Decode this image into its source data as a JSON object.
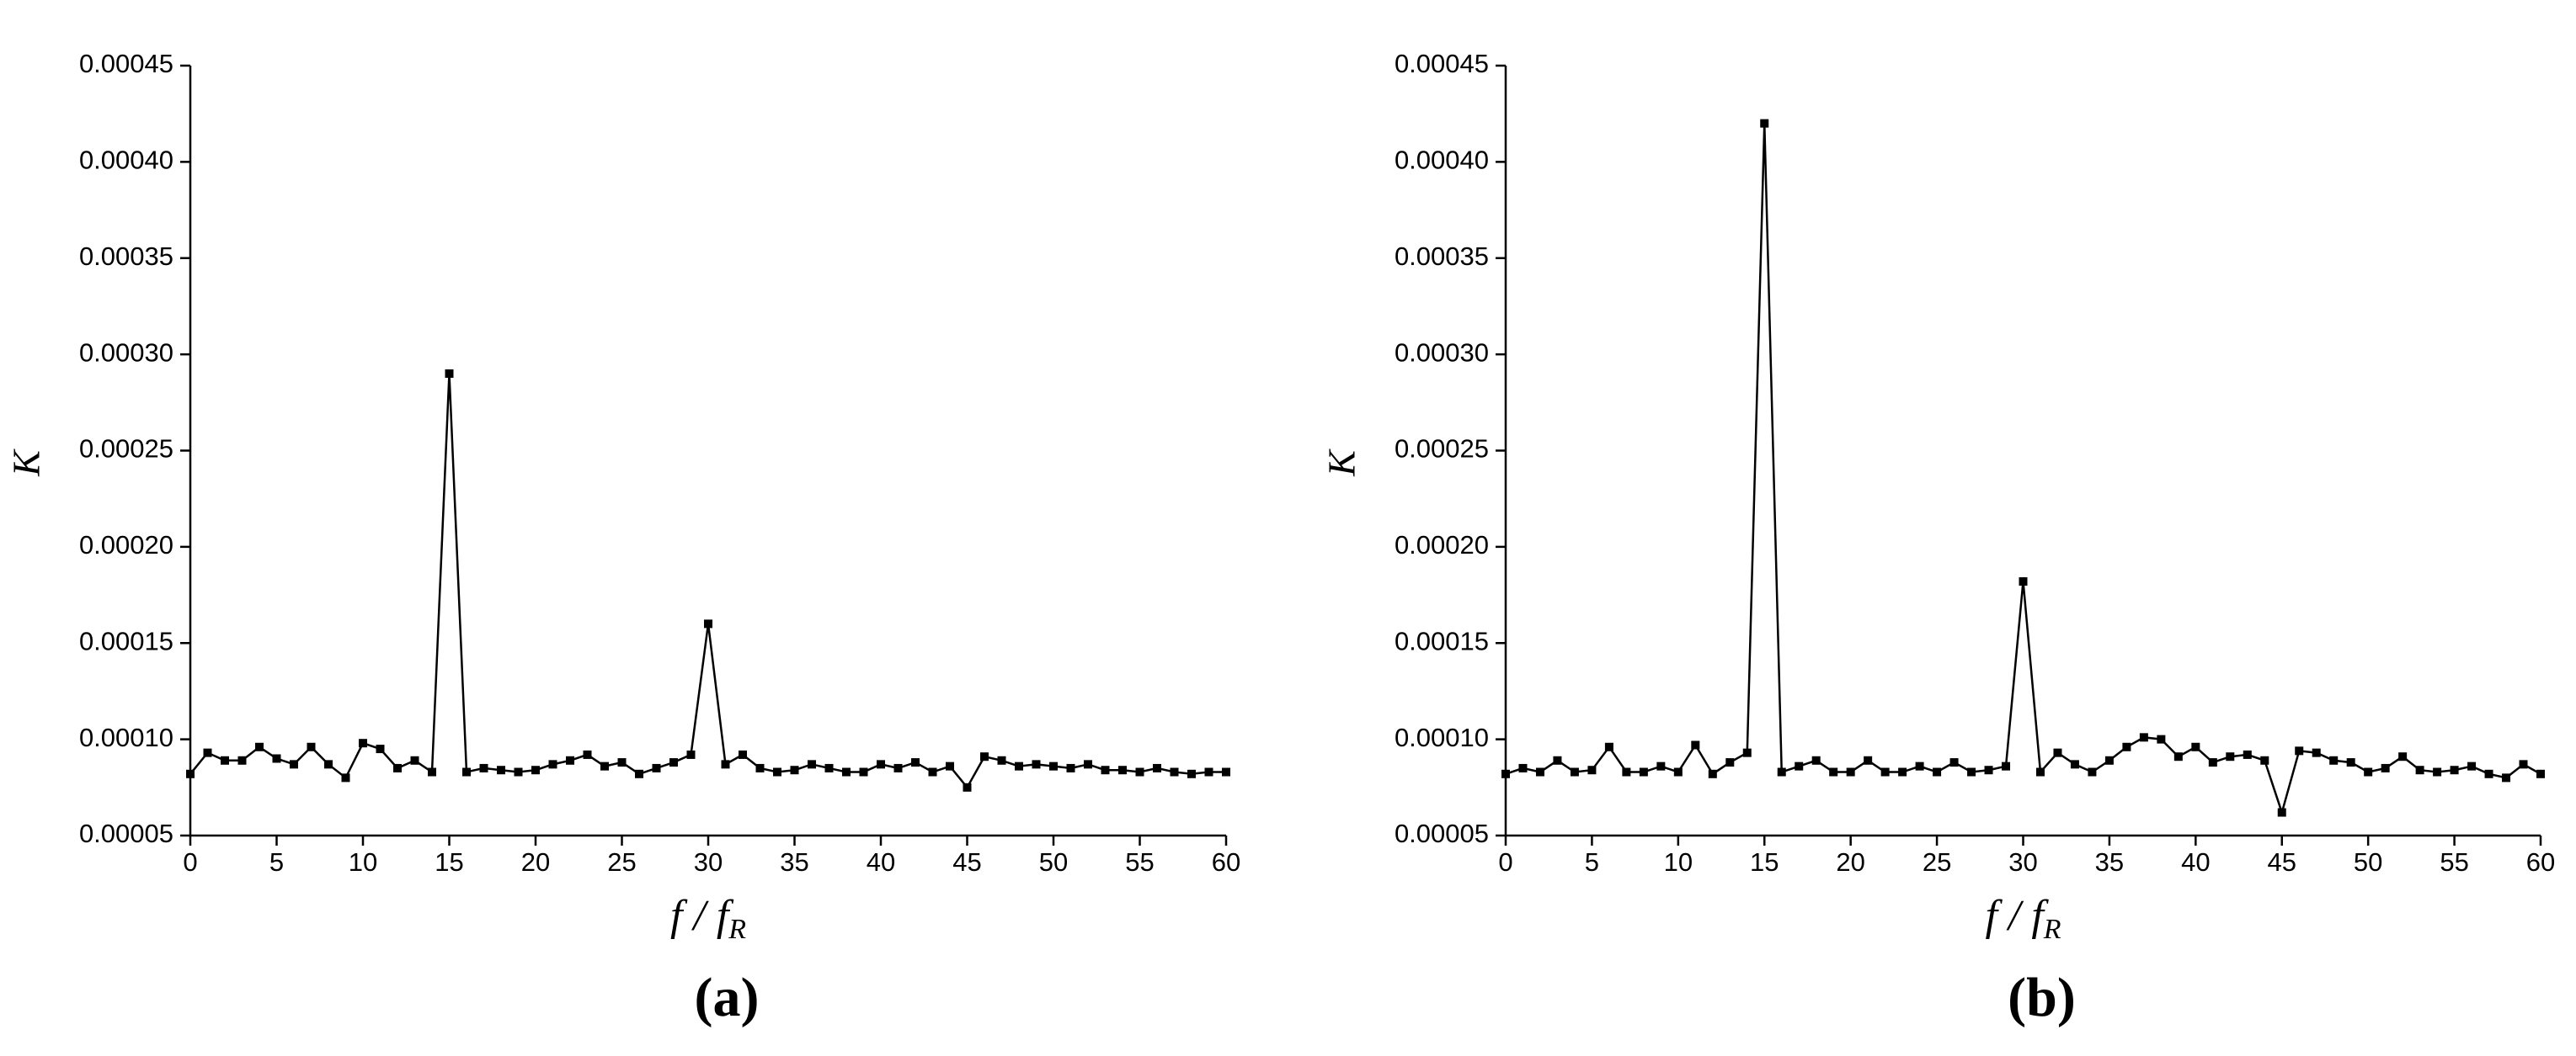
{
  "chart_data": [
    {
      "type": "line",
      "panel_label": "(a)",
      "y_label": "K",
      "x_label": {
        "text": "f / f",
        "subscript": "R"
      },
      "x": [
        0,
        1,
        2,
        3,
        4,
        5,
        6,
        7,
        8,
        9,
        10,
        11,
        12,
        13,
        14,
        15,
        16,
        17,
        18,
        19,
        20,
        21,
        22,
        23,
        24,
        25,
        26,
        27,
        28,
        29,
        30,
        31,
        32,
        33,
        34,
        35,
        36,
        37,
        38,
        39,
        40,
        41,
        42,
        43,
        44,
        45,
        46,
        47,
        48,
        49,
        50,
        51,
        52,
        53,
        54,
        55,
        56,
        57,
        58,
        59,
        60
      ],
      "series": [
        {
          "color": "#000000",
          "values": [
            8.2e-05,
            9.3e-05,
            8.9e-05,
            8.9e-05,
            9.6e-05,
            9e-05,
            8.7e-05,
            9.6e-05,
            8.7e-05,
            8e-05,
            9.8e-05,
            9.5e-05,
            8.5e-05,
            8.9e-05,
            8.3e-05,
            0.00029,
            8.3e-05,
            8.5e-05,
            8.4e-05,
            8.3e-05,
            8.4e-05,
            8.7e-05,
            8.9e-05,
            9.2e-05,
            8.6e-05,
            8.8e-05,
            8.2e-05,
            8.5e-05,
            8.8e-05,
            9.2e-05,
            0.00016,
            8.7e-05,
            9.2e-05,
            8.5e-05,
            8.3e-05,
            8.4e-05,
            8.7e-05,
            8.5e-05,
            8.3e-05,
            8.3e-05,
            8.7e-05,
            8.5e-05,
            8.8e-05,
            8.3e-05,
            8.6e-05,
            7.5e-05,
            9.1e-05,
            8.9e-05,
            8.6e-05,
            8.7e-05,
            8.6e-05,
            8.5e-05,
            8.7e-05,
            8.4e-05,
            8.4e-05,
            8.3e-05,
            8.5e-05,
            8.3e-05,
            8.2e-05,
            8.3e-05,
            8.3e-05
          ]
        }
      ],
      "xlim": [
        0,
        60
      ],
      "xticks": [
        0,
        5,
        10,
        15,
        20,
        25,
        30,
        35,
        40,
        45,
        50,
        55,
        60
      ],
      "ylim": [
        5e-05,
        0.00045
      ],
      "yticks": [
        5e-05,
        {
          "value": 0.0001,
          "label": "0.00010"
        },
        0.00015,
        {
          "value": 0.0002,
          "label": "0.00020"
        },
        0.00025,
        {
          "value": 0.0003,
          "label": "0.00030"
        },
        0.00035,
        {
          "value": 0.0004,
          "label": "0.00040"
        },
        0.00045
      ]
    },
    {
      "type": "line",
      "panel_label": "(b)",
      "y_label": "K",
      "x_label": {
        "text": "f / f",
        "subscript": "R"
      },
      "x": [
        0,
        1,
        2,
        3,
        4,
        5,
        6,
        7,
        8,
        9,
        10,
        11,
        12,
        13,
        14,
        15,
        16,
        17,
        18,
        19,
        20,
        21,
        22,
        23,
        24,
        25,
        26,
        27,
        28,
        29,
        30,
        31,
        32,
        33,
        34,
        35,
        36,
        37,
        38,
        39,
        40,
        41,
        42,
        43,
        44,
        45,
        46,
        47,
        48,
        49,
        50,
        51,
        52,
        53,
        54,
        55,
        56,
        57,
        58,
        59,
        60
      ],
      "series": [
        {
          "color": "#000000",
          "values": [
            8.2e-05,
            8.5e-05,
            8.3e-05,
            8.9e-05,
            8.3e-05,
            8.4e-05,
            9.6e-05,
            8.3e-05,
            8.3e-05,
            8.6e-05,
            8.3e-05,
            9.7e-05,
            8.2e-05,
            8.8e-05,
            9.3e-05,
            0.00042,
            8.3e-05,
            8.6e-05,
            8.9e-05,
            8.3e-05,
            8.3e-05,
            8.9e-05,
            8.3e-05,
            8.3e-05,
            8.6e-05,
            8.3e-05,
            8.8e-05,
            8.3e-05,
            8.4e-05,
            8.6e-05,
            0.000182,
            8.3e-05,
            9.3e-05,
            8.7e-05,
            8.3e-05,
            8.9e-05,
            9.6e-05,
            0.000101,
            0.0001,
            9.1e-05,
            9.6e-05,
            8.8e-05,
            9.1e-05,
            9.2e-05,
            8.9e-05,
            6.2e-05,
            9.4e-05,
            9.3e-05,
            8.9e-05,
            8.8e-05,
            8.3e-05,
            8.5e-05,
            9.1e-05,
            8.4e-05,
            8.3e-05,
            8.4e-05,
            8.6e-05,
            8.2e-05,
            8e-05,
            8.7e-05,
            8.2e-05
          ]
        }
      ],
      "xlim": [
        0,
        60
      ],
      "xticks": [
        0,
        5,
        10,
        15,
        20,
        25,
        30,
        35,
        40,
        45,
        50,
        55,
        60
      ],
      "ylim": [
        5e-05,
        0.00045
      ],
      "yticks": [
        5e-05,
        {
          "value": 0.0001,
          "label": "0.00010"
        },
        0.00015,
        {
          "value": 0.0002,
          "label": "0.00020"
        },
        0.00025,
        {
          "value": 0.0003,
          "label": "0.00030"
        },
        0.00035,
        {
          "value": 0.0004,
          "label": "0.00040"
        },
        0.00045
      ]
    }
  ]
}
